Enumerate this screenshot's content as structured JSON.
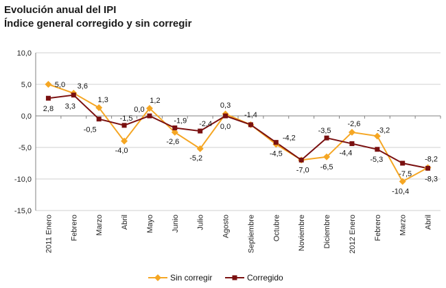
{
  "colors": {
    "sin_corregir": "#F5A623",
    "corregido": "#7A1010",
    "gridline": "#CFCFCF",
    "axis": "#808080"
  },
  "chart_data": {
    "type": "line",
    "title": "Evolución anual del IPI",
    "subtitle": "Índice general corregido y sin corregir",
    "xlabel": "",
    "ylabel": "",
    "ylim": [
      -15,
      10
    ],
    "yticks": [
      10,
      5,
      0,
      -5,
      -10,
      -15
    ],
    "ytick_labels": [
      "10,0",
      "5,0",
      "0,0",
      "-5,0",
      "-10,0",
      "-15,0"
    ],
    "grid": "horizontal",
    "legend_position": "bottom",
    "categories": [
      "2011 Enero",
      "Febrero",
      "Marzo",
      "Abril",
      "Mayo",
      "Junio",
      "Julio",
      "Agosto",
      "Septiembre",
      "Octubre",
      "Noviembre",
      "Diciembre",
      "2012 Enero",
      "Febrero",
      "Marzo",
      "Abril"
    ],
    "series": [
      {
        "name": "Sin corregir",
        "marker": "diamond",
        "values": [
          5.0,
          3.6,
          1.3,
          -4.0,
          1.2,
          -2.6,
          -5.2,
          0.3,
          -1.4,
          -4.5,
          -7.0,
          -6.5,
          -2.6,
          -3.2,
          -10.4,
          -8.2
        ],
        "labels": [
          "5,0",
          "3,6",
          "1,3",
          "-4,0",
          "1,2",
          "-2,6",
          "-5,2",
          "0,3",
          "-1,4",
          "-4,5",
          "-7,0",
          "-6,5",
          "-2,6",
          "-3,2",
          "-10,4",
          "-8,2"
        ]
      },
      {
        "name": "Corregido",
        "marker": "square",
        "values": [
          2.8,
          3.3,
          -0.5,
          -1.5,
          0.0,
          -1.9,
          -2.4,
          0.0,
          -1.4,
          -4.2,
          -7.0,
          -3.5,
          -4.4,
          -5.3,
          -7.5,
          -8.3
        ],
        "labels": [
          "2,8",
          "3,3",
          "-0,5",
          "-1,5",
          "0,0",
          "-1,9",
          "-2,4",
          "0,0",
          "",
          "-4,2",
          "",
          "-3,5",
          "-4,4",
          "-5,3",
          "-7,5",
          "-8,3"
        ]
      }
    ]
  }
}
